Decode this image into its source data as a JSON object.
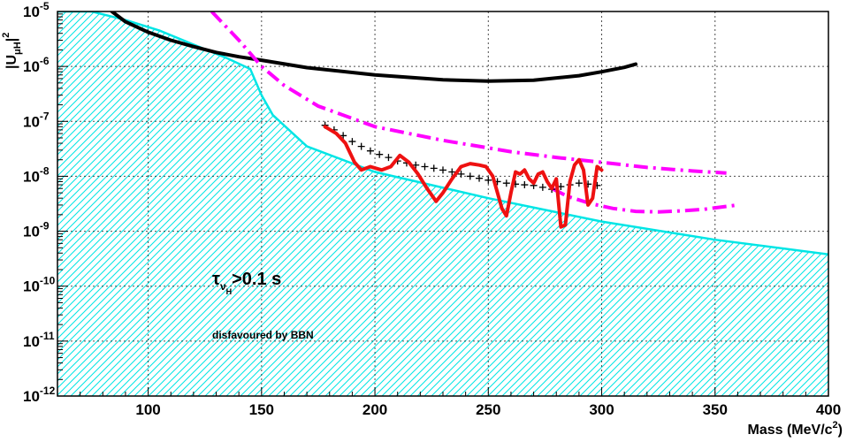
{
  "chart_data": {
    "type": "line",
    "title": "",
    "xlabel": "Mass (MeV/c²)",
    "xlabel_parts": {
      "main": "Mass (MeV/c",
      "sup": "2",
      "close": ")"
    },
    "ylabel": "|Uμ H|²",
    "ylabel_parts": {
      "main": "|U",
      "sub": "μH",
      "close": "|",
      "sup": "2"
    },
    "xlim": [
      60,
      400
    ],
    "ylim": [
      1e-12,
      1e-05
    ],
    "yscale": "log",
    "grid": true,
    "x_ticks": [
      100,
      150,
      200,
      250,
      300,
      350,
      400
    ],
    "y_ticks": [
      {
        "value": 1e-12,
        "base": "10",
        "exp": "-12"
      },
      {
        "value": 1e-11,
        "base": "10",
        "exp": "-11"
      },
      {
        "value": 1e-10,
        "base": "10",
        "exp": "-10"
      },
      {
        "value": 1e-09,
        "base": "10",
        "exp": "-9"
      },
      {
        "value": 1e-08,
        "base": "10",
        "exp": "-8"
      },
      {
        "value": 1e-07,
        "base": "10",
        "exp": "-7"
      },
      {
        "value": 1e-06,
        "base": "10",
        "exp": "-6"
      },
      {
        "value": 1e-05,
        "base": "10",
        "exp": "-5"
      }
    ],
    "annotations": {
      "tau": {
        "symbol": "τ",
        "sub": "ν",
        "subsub": "H",
        "rest": ">0.1 s"
      },
      "bbn": "disfavoured by BBN"
    },
    "series": [
      {
        "color": "#00e5e5",
        "style": "solid-hatched-below",
        "x": [
          60,
          75,
          90,
          105,
          120,
          135,
          145,
          150,
          155,
          170,
          200,
          250,
          300,
          350,
          400
        ],
        "y": [
          1e-05,
          1e-05,
          7e-06,
          4.5e-06,
          2.5e-06,
          1.4e-06,
          9e-07,
          3e-07,
          1.3e-07,
          3.5e-08,
          1.2e-08,
          4e-09,
          1.5e-09,
          7e-10,
          3.8e-10
        ]
      },
      {
        "color": "#000000",
        "style": "solid-thick",
        "x": [
          84,
          90,
          100,
          110,
          120,
          130,
          140,
          150,
          170,
          200,
          230,
          250,
          270,
          290,
          300,
          310,
          315
        ],
        "y": [
          1e-05,
          6.5e-06,
          4.2e-06,
          3e-06,
          2.3e-06,
          1.8e-06,
          1.5e-06,
          1.3e-06,
          9.5e-07,
          7e-07,
          5.7e-07,
          5.4e-07,
          5.6e-07,
          6.8e-07,
          8e-07,
          9.6e-07,
          1.1e-06
        ]
      },
      {
        "color": "#ff00ff",
        "style": "dashdot",
        "x": [
          128,
          140,
          150,
          160,
          175,
          200,
          230,
          260,
          280,
          300,
          320,
          340,
          355
        ],
        "y": [
          1e-05,
          3e-06,
          1e-06,
          4.5e-07,
          1.9e-07,
          8e-08,
          4.5e-08,
          2.8e-08,
          2.2e-08,
          1.8e-08,
          1.45e-08,
          1.25e-08,
          1.15e-08
        ]
      },
      {
        "color": "#ff00ff",
        "style": "dashdot",
        "x": [
          278,
          285,
          295,
          305,
          315,
          325,
          335,
          345,
          360
        ],
        "y": [
          6e-09,
          4.3e-09,
          3.2e-09,
          2.6e-09,
          2.3e-09,
          2.25e-09,
          2.35e-09,
          2.5e-09,
          3e-09
        ]
      },
      {
        "color": "#000000",
        "style": "cross-markers",
        "x": [
          178,
          182,
          186,
          190,
          194,
          198,
          202,
          206,
          210,
          214,
          218,
          222,
          226,
          230,
          234,
          238,
          242,
          246,
          250,
          254,
          258,
          262,
          266,
          270,
          274,
          278,
          282,
          286,
          290,
          294,
          298
        ],
        "y": [
          8.5e-08,
          7e-08,
          5.5e-08,
          4.3e-08,
          3.5e-08,
          2.9e-08,
          2.5e-08,
          2.2e-08,
          1.9e-08,
          1.75e-08,
          1.6e-08,
          1.5e-08,
          1.4e-08,
          1.3e-08,
          1.2e-08,
          1.1e-08,
          1e-08,
          9.2e-09,
          8.5e-09,
          8e-09,
          7.5e-09,
          7.2e-09,
          7e-09,
          6.8e-09,
          6.3e-09,
          5.8e-09,
          6.5e-09,
          7e-09,
          7.5e-09,
          7.2e-09,
          6.8e-09
        ]
      },
      {
        "color": "#ee1111",
        "style": "solid-thick",
        "x": [
          178,
          183,
          187,
          191,
          194,
          198,
          203,
          207,
          211,
          215,
          219,
          223,
          227,
          230,
          234,
          238,
          242,
          246,
          249,
          252,
          256,
          258,
          260,
          262,
          264,
          266,
          268,
          270,
          272,
          274,
          276,
          278,
          280,
          282,
          284,
          286,
          288,
          290,
          292,
          294,
          296,
          298,
          300
        ],
        "y": [
          8e-08,
          6e-08,
          4e-08,
          1.8e-08,
          1.3e-08,
          1.5e-08,
          1.3e-08,
          1.5e-08,
          2.4e-08,
          1.8e-08,
          1.1e-08,
          6e-09,
          3.5e-09,
          5e-09,
          9e-09,
          1.5e-08,
          1.7e-08,
          1.6e-08,
          1.5e-08,
          1e-08,
          2.6e-09,
          1.9e-09,
          5e-09,
          1.2e-08,
          1.1e-08,
          1.3e-08,
          9e-09,
          7.5e-09,
          1.1e-08,
          1.2e-08,
          8e-09,
          6e-09,
          9e-09,
          1.2e-09,
          1.3e-09,
          8e-09,
          1.6e-08,
          2e-08,
          1.3e-08,
          3e-09,
          4e-09,
          1.5e-08,
          1.3e-08
        ]
      }
    ]
  }
}
